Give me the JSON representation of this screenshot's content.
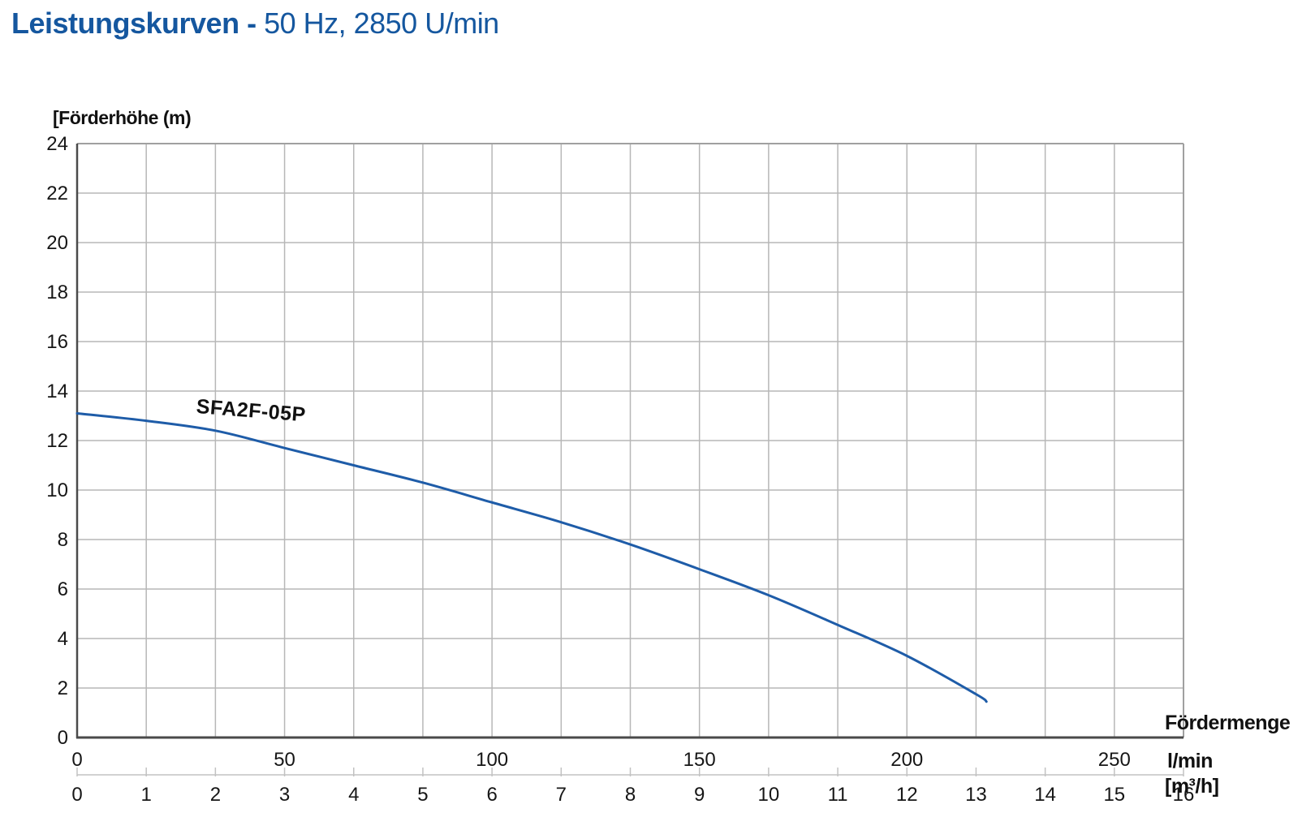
{
  "title": {
    "bold": "Leistungskurven -",
    "rest": " 50 Hz, 2850 U/min"
  },
  "chart_data": {
    "type": "line",
    "title": "Leistungskurven - 50 Hz, 2850 U/min",
    "y_axis": {
      "label": "[Förderhöhe (m)",
      "min": 0,
      "max": 24,
      "ticks": [
        0,
        2,
        4,
        6,
        8,
        10,
        12,
        14,
        16,
        18,
        20,
        22,
        24
      ]
    },
    "x_axis_title": "Fördermenge",
    "x_axis_primary": {
      "unit": "l/min",
      "ticks": [
        0,
        50,
        100,
        150,
        200,
        250
      ],
      "to_m3h_factor": 0.06
    },
    "x_axis_secondary": {
      "unit": "[m³/h]",
      "min": 0,
      "max": 16,
      "ticks": [
        0,
        1,
        2,
        3,
        4,
        5,
        6,
        7,
        8,
        9,
        10,
        11,
        12,
        13,
        14,
        15,
        16
      ]
    },
    "grid": true,
    "legend_position": "inline-label",
    "series": [
      {
        "name": "SFA2F-05P",
        "x_unit": "m³/h",
        "y_unit": "m",
        "points": [
          [
            0,
            13.1
          ],
          [
            1,
            12.8
          ],
          [
            2,
            12.4
          ],
          [
            3,
            11.7
          ],
          [
            4,
            11.0
          ],
          [
            5,
            10.3
          ],
          [
            6,
            9.5
          ],
          [
            7,
            8.7
          ],
          [
            8,
            7.8
          ],
          [
            9,
            6.8
          ],
          [
            10,
            5.75
          ],
          [
            11,
            4.55
          ],
          [
            12,
            3.3
          ],
          [
            13,
            1.75
          ],
          [
            13.15,
            1.45
          ]
        ]
      }
    ],
    "colors": {
      "title_blue": "#15579f",
      "curve": "#1e5ca8",
      "grid": "#b7b7b7",
      "border": "#a0a0a0",
      "axis": "#4a4a4a",
      "secondary_axis": "#c2c2c2",
      "text": "#161616"
    }
  }
}
